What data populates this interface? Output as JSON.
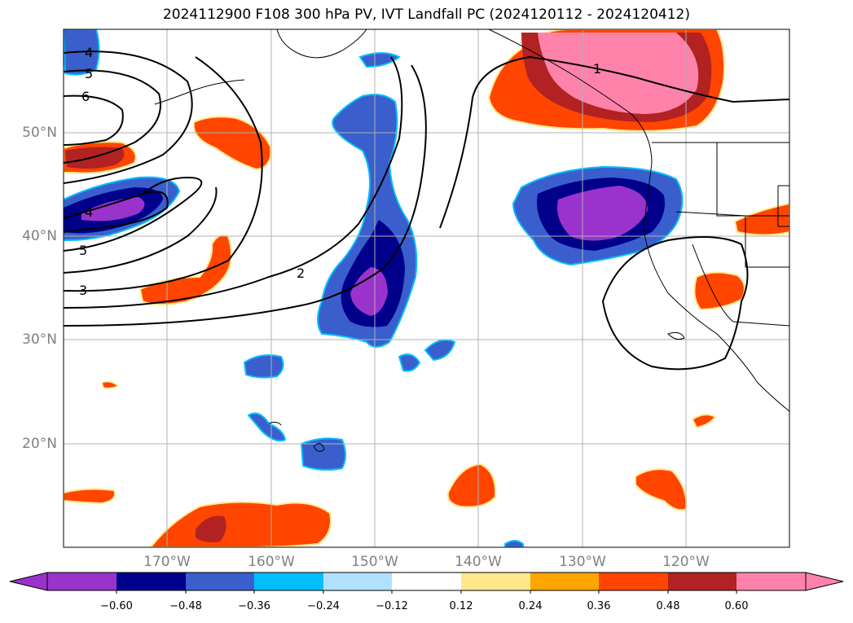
{
  "title": "2024112900 F108 300 hPa PV, IVT Landfall PC (2024120112 - 2024120412)",
  "lat_labels": [
    "50°N",
    "40°N",
    "30°N",
    "20°N"
  ],
  "lon_labels": [
    "170°W",
    "160°W",
    "150°W",
    "140°W",
    "130°W",
    "120°W"
  ],
  "pv_contour_labels": [
    "4",
    "5",
    "6",
    "4",
    "5",
    "3",
    "2",
    "1"
  ],
  "colorbar": {
    "ticks": [
      "−0.60",
      "−0.48",
      "−0.36",
      "−0.24",
      "−0.12",
      "0.12",
      "0.24",
      "0.36",
      "0.48",
      "0.60"
    ],
    "colors": [
      "#9933cc",
      "#00008b",
      "#3a5fcd",
      "#00bfff",
      "#b0e2ff",
      "#ffffff",
      "#ffe88c",
      "#ffa500",
      "#ff4500",
      "#b22222",
      "#ff82ab"
    ]
  },
  "colors": {
    "neg_strong": "#9933cc",
    "neg_dark": "#00008b",
    "neg_mid": "#3a5fcd",
    "neg_light": "#00bfff",
    "pos_light": "#ffe88c",
    "pos_orange": "#ff4500",
    "pos_red": "#b22222",
    "pos_pink": "#ff82ab",
    "gridline": "#b0b0b0",
    "tick_label": "#808080"
  }
}
